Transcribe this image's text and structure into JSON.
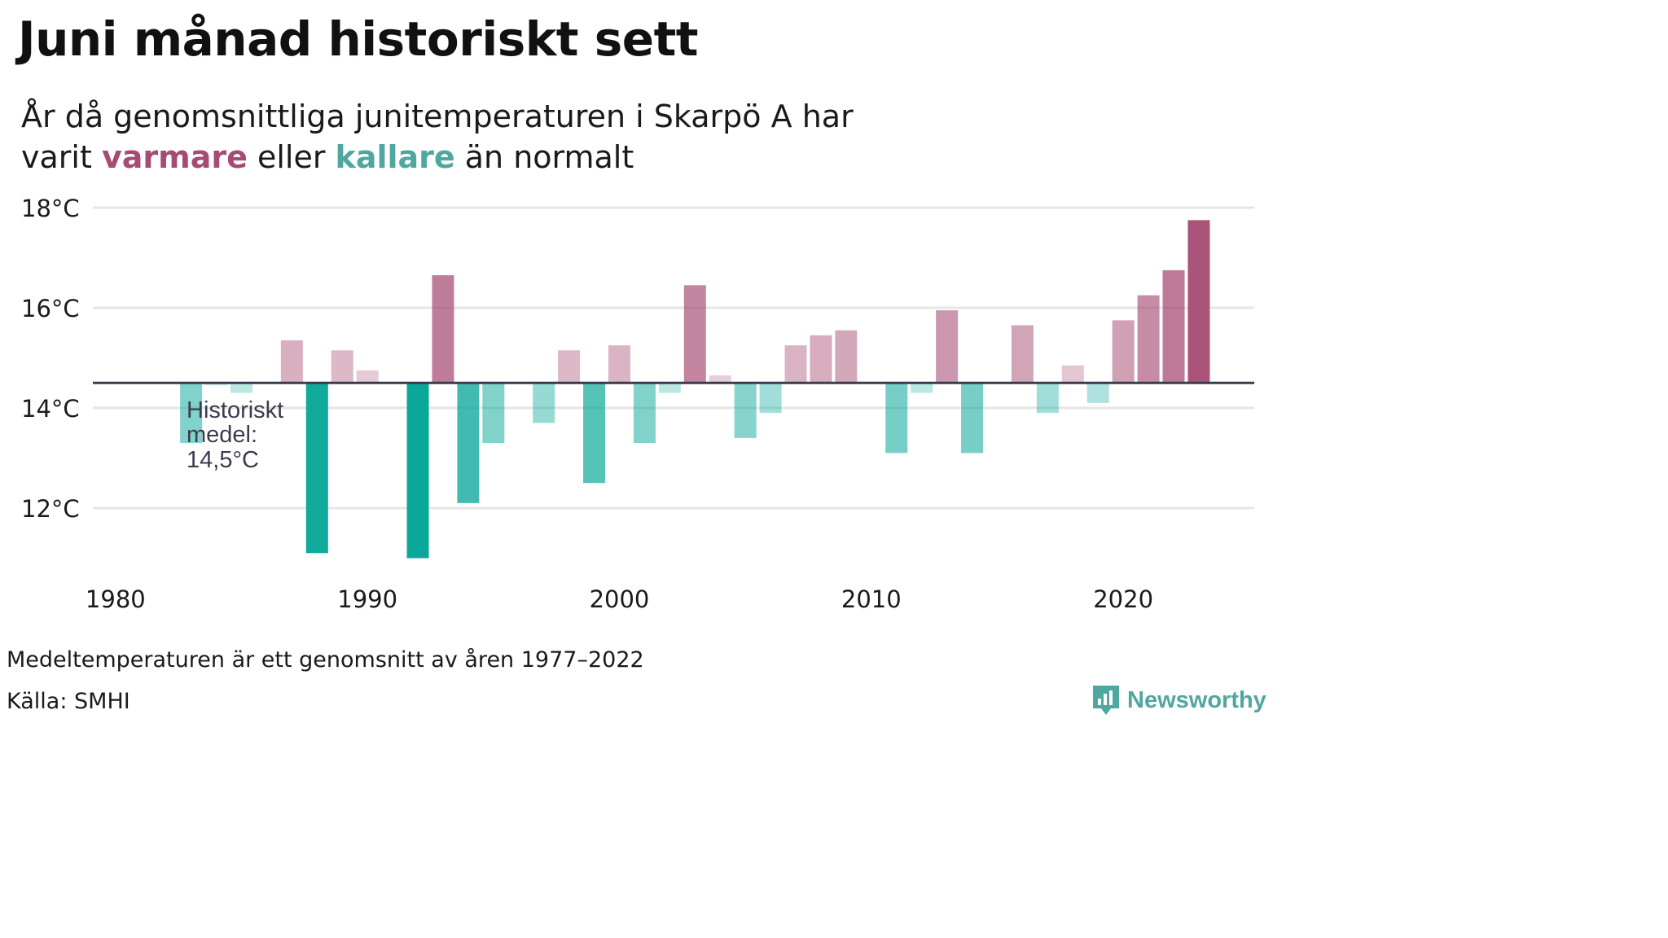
{
  "title": "Juni månad historiskt sett",
  "subtitle": {
    "line1": "År då genomsnittliga junitemperaturen i Skarpö A har",
    "line2_pre": "varit",
    "warm_word": "varmare",
    "line2_mid": "eller",
    "cold_word": "kallare",
    "line2_post": "än normalt"
  },
  "colors": {
    "warm": "#a64b73",
    "cold": "#0aa89a",
    "baseline": "#3b3b4f",
    "grid": "#e6e6e6"
  },
  "annotation": {
    "line1": "Historiskt",
    "line2": "medel:",
    "line3": "14,5°C"
  },
  "footnote": "Medeltemperaturen är ett genomsnitt av åren 1977–2022",
  "source": "Källa: SMHI",
  "brand": {
    "name": "Newsworthy",
    "icon": "bar-chart-badge-icon"
  },
  "chart_data": {
    "type": "bar",
    "baseline": 14.5,
    "ylim": [
      10.5,
      18.5
    ],
    "yticks": [
      12,
      14,
      16,
      18
    ],
    "ytick_labels": [
      "12°C",
      "14°C",
      "16°C",
      "18°C"
    ],
    "xlim": [
      1979.1,
      2025.2
    ],
    "xticks": [
      1980,
      1990,
      2000,
      2010,
      2020
    ],
    "xtick_labels": [
      "1980",
      "1990",
      "2000",
      "2010",
      "2020"
    ],
    "grid": true,
    "x": [
      1983,
      1984,
      1985,
      1987,
      1988,
      1989,
      1990,
      1992,
      1993,
      1994,
      1995,
      1997,
      1998,
      1999,
      2000,
      2001,
      2002,
      2003,
      2004,
      2005,
      2006,
      2007,
      2008,
      2009,
      2011,
      2012,
      2013,
      2014,
      2016,
      2017,
      2018,
      2019,
      2020,
      2021,
      2022,
      2023
    ],
    "values": [
      13.3,
      14.45,
      14.3,
      15.35,
      11.1,
      15.15,
      14.75,
      11.0,
      16.65,
      12.1,
      13.3,
      13.7,
      15.15,
      12.5,
      15.25,
      13.3,
      14.3,
      16.45,
      14.65,
      13.4,
      13.9,
      15.25,
      15.45,
      15.55,
      13.1,
      14.3,
      15.95,
      13.1,
      15.65,
      13.9,
      14.85,
      14.1,
      15.75,
      16.25,
      16.75,
      17.75
    ]
  }
}
